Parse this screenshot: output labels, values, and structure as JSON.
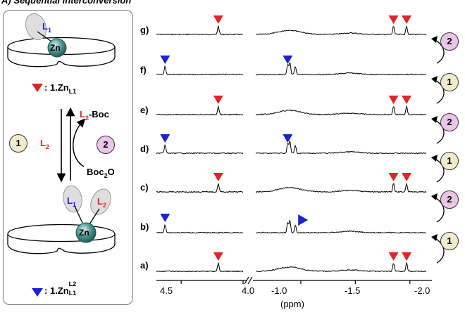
{
  "heading": "A) Sequential interconversion",
  "scheme": {
    "top_ligand": "L1",
    "top_metal": "Zn",
    "top_legend": ": 1.Zn",
    "top_legend_sub": "L1",
    "l2_label": "L2",
    "l2boc_l": "L2",
    "l2boc_rest": "-Boc",
    "boc2o_main": "Boc",
    "boc2o_sub": "2",
    "boc2o_end": "O",
    "step_one": "1",
    "step_two": "2",
    "bottom_l1": "L1",
    "bottom_l2": "L2",
    "bottom_metal": "Zn",
    "bottom_legend": ": 1.Zn",
    "bottom_legend_sup": "L2",
    "bottom_legend_sub": "L1"
  },
  "colors": {
    "red": "#e32326",
    "blue": "#1b22d6",
    "step_one": "#f2ebcb",
    "step_two": "#e9c5e8"
  },
  "chart_data": {
    "type": "line",
    "xlabel": "(ppm)",
    "axis_break": true,
    "xlim_left": [
      4.7,
      4.0
    ],
    "xlim_right": [
      -0.6,
      -2.15
    ],
    "xticks": [
      "4.5",
      "4.0",
      "-1.0",
      "-1.5",
      "-2.0"
    ],
    "traces": [
      {
        "label": "g)",
        "state": "1.Zn_L1",
        "marker": "red",
        "step": "2",
        "peaks_ppm": [
          4.2,
          -1.85,
          -1.97
        ],
        "broad_ppm": -0.9
      },
      {
        "label": "f)",
        "state": "1.Zn_L1^L2",
        "marker": "blue",
        "step": "1",
        "peaks_ppm": [
          4.63,
          -0.88,
          -0.9,
          -0.95
        ]
      },
      {
        "label": "e)",
        "state": "1.Zn_L1",
        "marker": "red",
        "step": "2",
        "peaks_ppm": [
          4.2,
          -1.85,
          -1.97
        ],
        "broad_ppm": -0.9
      },
      {
        "label": "d)",
        "state": "1.Zn_L1^L2",
        "marker": "blue",
        "step": "1",
        "peaks_ppm": [
          4.63,
          -0.88,
          -0.9,
          -0.95
        ]
      },
      {
        "label": "c)",
        "state": "1.Zn_L1",
        "marker": "red",
        "step": "2",
        "peaks_ppm": [
          4.2,
          -1.85,
          -1.97
        ],
        "broad_ppm": -0.9
      },
      {
        "label": "b)",
        "state": "1.Zn_L1^L2",
        "marker": "blue",
        "step": "1",
        "peaks_ppm": [
          4.63,
          -0.88,
          -0.9,
          -0.95
        ]
      },
      {
        "label": "a)",
        "state": "1.Zn_L1",
        "marker": "red",
        "step": null,
        "peaks_ppm": [
          4.2,
          -1.85,
          -1.97
        ],
        "broad_ppm": -0.9
      }
    ]
  }
}
